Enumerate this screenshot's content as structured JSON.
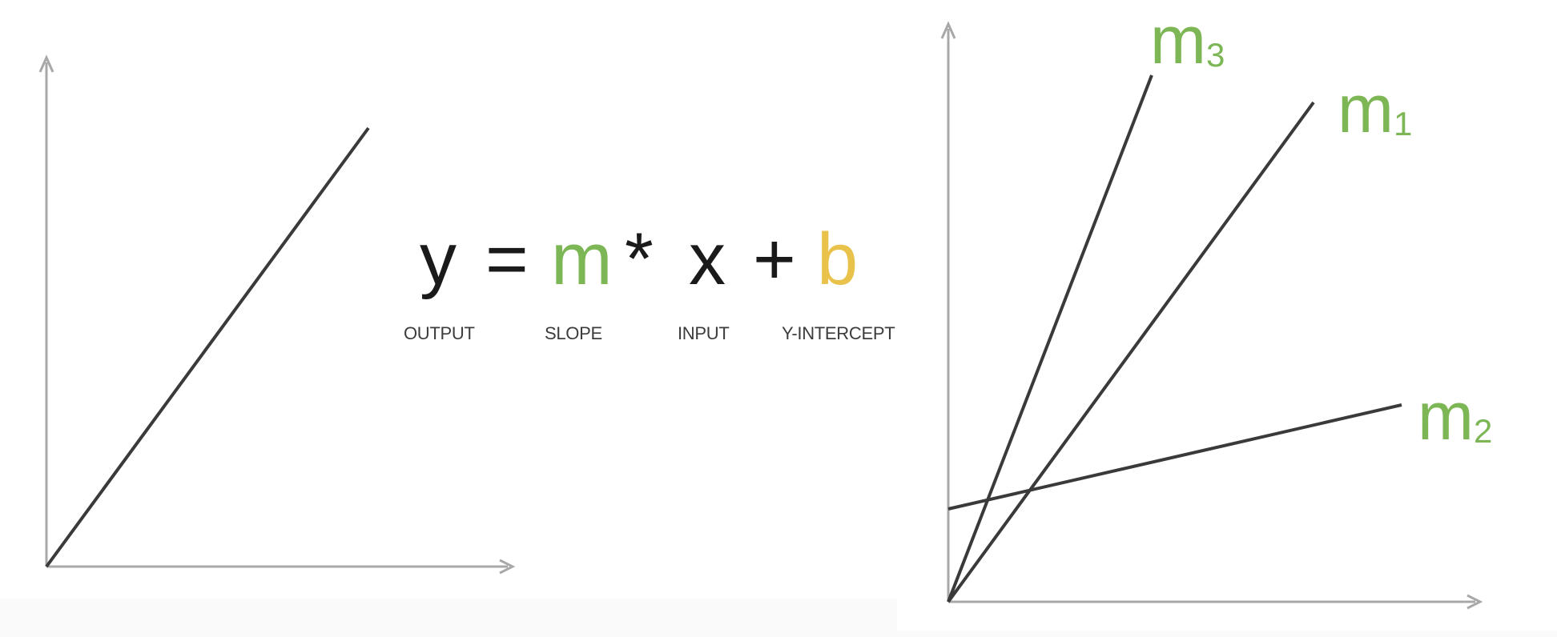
{
  "equation": {
    "output_symbol": "y",
    "equals_symbol": "=",
    "slope_symbol": "m",
    "times_symbol": "*",
    "input_symbol": "x",
    "plus_symbol": "+",
    "intercept_symbol": "b",
    "output_caption": "OUTPUT",
    "slope_caption": "SLOPE",
    "input_caption": "INPUT",
    "intercept_caption": "Y-INTERCEPT"
  },
  "right_graph": {
    "lines": [
      {
        "symbol": "m",
        "subscript": "3"
      },
      {
        "symbol": "m",
        "subscript": "1"
      },
      {
        "symbol": "m",
        "subscript": "2"
      }
    ]
  },
  "colors": {
    "slope_green": "#7cb655",
    "intercept_yellow": "#e8c24a",
    "axis_gray": "#a8a8a8",
    "line_dark": "#3a3a3a",
    "text_dark": "#1a1a1a"
  }
}
